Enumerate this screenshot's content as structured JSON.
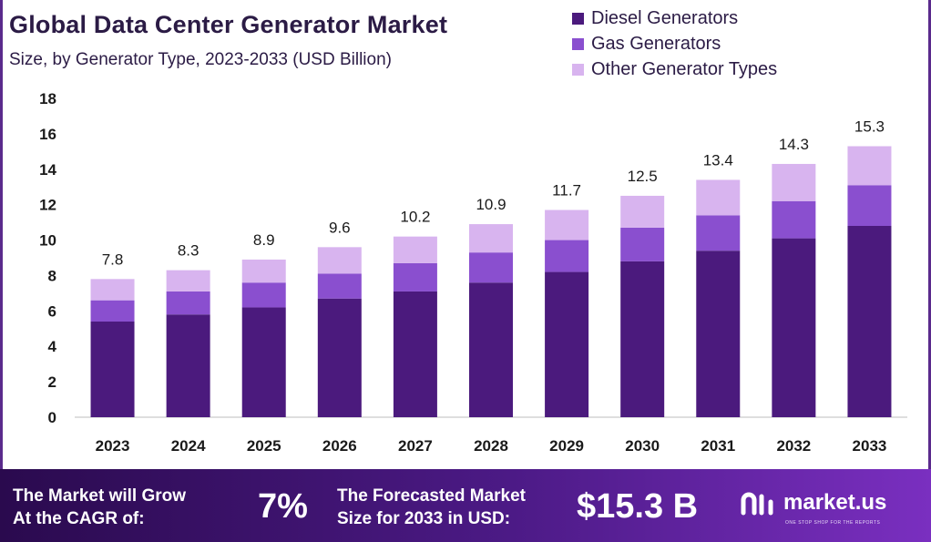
{
  "header": {
    "title": "Global Data Center Generator Market",
    "subtitle": "Size, by Generator Type, 2023-2033 (USD Billion)"
  },
  "colors": {
    "diesel": "#4b1a7d",
    "gas": "#8a4fcf",
    "other": "#d8b4ef",
    "footer_start": "#2a0a4e",
    "footer_end": "#7a2fc0"
  },
  "chart_data": {
    "type": "bar",
    "stacked": true,
    "title": "Global Data Center Generator Market",
    "subtitle": "Size, by Generator Type, 2023-2033 (USD Billion)",
    "categories": [
      "2023",
      "2024",
      "2025",
      "2026",
      "2027",
      "2028",
      "2029",
      "2030",
      "2031",
      "2032",
      "2033"
    ],
    "series": [
      {
        "name": "Diesel Generators",
        "values": [
          5.4,
          5.8,
          6.2,
          6.7,
          7.1,
          7.6,
          8.2,
          8.8,
          9.4,
          10.1,
          10.8
        ]
      },
      {
        "name": "Gas Generators",
        "values": [
          1.2,
          1.3,
          1.4,
          1.4,
          1.6,
          1.7,
          1.8,
          1.9,
          2.0,
          2.1,
          2.3
        ]
      },
      {
        "name": "Other Generator Types",
        "values": [
          1.2,
          1.2,
          1.3,
          1.5,
          1.5,
          1.6,
          1.7,
          1.8,
          2.0,
          2.1,
          2.2
        ]
      }
    ],
    "totals": [
      "7.8",
      "8.3",
      "8.9",
      "9.6",
      "10.2",
      "10.9",
      "11.7",
      "12.5",
      "13.4",
      "14.3",
      "15.3"
    ],
    "ylim": [
      0,
      18
    ],
    "yticks": [
      "0",
      "2",
      "4",
      "6",
      "8",
      "10",
      "12",
      "14",
      "16",
      "18"
    ],
    "legend_position": "top-right",
    "grid": false
  },
  "footer": {
    "cagr_label_line1": "The Market will Grow",
    "cagr_label_line2": "At the CAGR of:",
    "cagr_value": "7%",
    "forecast_label_line1": "The Forecasted Market",
    "forecast_label_line2": "Size for 2033 in USD:",
    "forecast_value": "$15.3 B",
    "brand_name": "market.us",
    "brand_tagline": "ONE STOP SHOP FOR THE REPORTS"
  }
}
